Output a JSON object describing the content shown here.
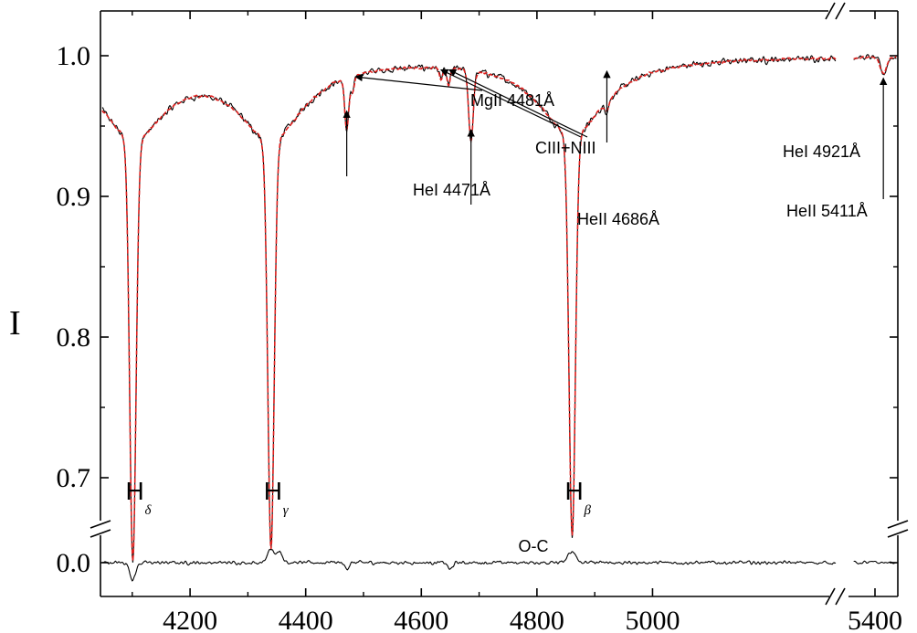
{
  "chart_data": {
    "type": "line",
    "ylabel": "I",
    "yticks": [
      "1.0",
      "0.9",
      "0.8",
      "0.7"
    ],
    "oc_tick": "0.0",
    "xticks": [
      "4200",
      "4400",
      "4600",
      "4800",
      "5000",
      "5400"
    ],
    "ylim": [
      0.685,
      1.015
    ],
    "xlim_main": [
      4045,
      5320
    ],
    "xlim_right": [
      5370,
      5430
    ],
    "colors": {
      "observed": "#000000",
      "model": "#e0201e",
      "oc": "#000000"
    },
    "series": [
      {
        "style": "solid-black"
      },
      {
        "style": "dashed-red"
      }
    ],
    "lines": [
      {
        "center": 4101,
        "depth": 0.3,
        "width": 5.5,
        "wing": 0.055,
        "wingw": 70
      },
      {
        "center": 4340,
        "depth": 0.29,
        "width": 5.5,
        "wing": 0.055,
        "wingw": 70
      },
      {
        "center": 4861,
        "depth": 0.285,
        "width": 5.5,
        "wing": 0.055,
        "wingw": 70
      },
      {
        "center": 4471,
        "depth": 0.037,
        "width": 3.5,
        "wing": 0,
        "wingw": 0
      },
      {
        "center": 4481,
        "depth": 0.012,
        "width": 3,
        "wing": 0,
        "wingw": 0
      },
      {
        "center": 4634,
        "depth": 0.008,
        "width": 3,
        "wing": 0,
        "wingw": 0
      },
      {
        "center": 4647,
        "depth": 0.012,
        "width": 3,
        "wing": 0,
        "wingw": 0
      },
      {
        "center": 4686,
        "depth": 0.05,
        "width": 4,
        "wing": 0,
        "wingw": 0
      },
      {
        "center": 4921,
        "depth": 0.006,
        "width": 3.5,
        "wing": 0,
        "wingw": 0
      },
      {
        "center": 5411,
        "depth": 0.012,
        "width": 4,
        "wing": 0,
        "wingw": 0
      }
    ],
    "line_labels": [
      {
        "main": "H",
        "sub": "δ",
        "x": 4101
      },
      {
        "main": "H",
        "sub": "γ",
        "x": 4340
      },
      {
        "main": "H",
        "sub": "β",
        "x": 4861
      }
    ],
    "annotations": [
      {
        "text": "HeI 4471Å",
        "target_x": 4471,
        "target_y": 0.962
      },
      {
        "text": "MgII 4481Å",
        "target_x": 4483,
        "target_y": 0.985
      },
      {
        "text": "CIII+NIII",
        "target_x": [
          4634,
          4648
        ],
        "target_y": 0.99
      },
      {
        "text": "HeII 4686Å",
        "target_x": 4686,
        "target_y": 0.95
      },
      {
        "text": "HeI 4921Å",
        "target_x": 4921,
        "target_y": 0.993
      },
      {
        "text": "HeII 5411Å",
        "target_x": 5411,
        "target_y": 0.988
      }
    ],
    "oc_label": "O-C",
    "oc_features": [
      {
        "center": 4101,
        "amp": -0.012,
        "width": 5
      },
      {
        "center": 4340,
        "amp": 0.01,
        "width": 6
      },
      {
        "center": 4355,
        "amp": 0.008,
        "width": 4
      },
      {
        "center": 4471,
        "amp": -0.004,
        "width": 4
      },
      {
        "center": 4650,
        "amp": -0.005,
        "width": 4
      },
      {
        "center": 4861,
        "amp": 0.008,
        "width": 7
      }
    ]
  }
}
